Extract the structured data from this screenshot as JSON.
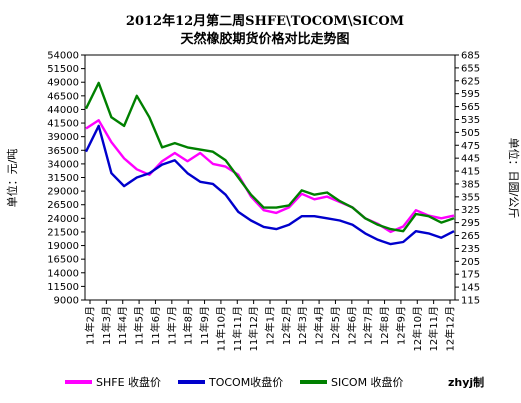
{
  "chart_data": {
    "type": "line",
    "title_line1": "2012年12月第二周SHFE\\TOCOM\\SICOM",
    "title_line2": "天然橡胶期货价格对比走势图",
    "ylabel_left": "单位：元/吨",
    "ylabel_right": "单位：日圆/公斤",
    "credit": "zhyj制",
    "grid": false,
    "legend_position": "bottom",
    "ylim_left": [
      9000,
      54000
    ],
    "ylim_right": [
      115,
      685
    ],
    "yticks_left": [
      9000,
      11500,
      14000,
      16500,
      19000,
      21500,
      24000,
      26500,
      29000,
      31500,
      34000,
      36500,
      39000,
      41500,
      44000,
      46500,
      49000,
      51500,
      54000
    ],
    "yticks_right": [
      115,
      145,
      175,
      205,
      235,
      265,
      295,
      325,
      355,
      385,
      415,
      445,
      475,
      505,
      535,
      565,
      595,
      625,
      655,
      685
    ],
    "x_ticks": [
      "11年2月",
      "11年3月",
      "11年4月",
      "11年5月",
      "11年6月",
      "11年7月",
      "11年8月",
      "11年9月",
      "11年10月",
      "11年11月",
      "11年12月",
      "12年1月",
      "12年2月",
      "12年3月",
      "12年4月",
      "12年5月",
      "12年6月",
      "12年7月",
      "12年8月",
      "12年9月",
      "12年10月",
      "12年11月",
      "12年12月"
    ],
    "series": [
      {
        "name": "SHFE 收盘价",
        "axis": "left",
        "color": "#ff00ff",
        "values": [
          40500,
          42000,
          38000,
          35000,
          33000,
          32000,
          34500,
          36000,
          34500,
          36000,
          34000,
          33500,
          32000,
          28000,
          25500,
          25000,
          26000,
          28500,
          27500,
          28000,
          27000,
          26000,
          24000,
          23000,
          21500,
          22500,
          25500,
          24500,
          24000,
          24500
        ]
      },
      {
        "name": "TOCOM收盘价",
        "axis": "right",
        "color": "#0000cc",
        "values": [
          460,
          520,
          410,
          380,
          400,
          410,
          430,
          440,
          410,
          390,
          385,
          360,
          320,
          300,
          285,
          280,
          290,
          310,
          310,
          305,
          300,
          290,
          270,
          255,
          245,
          250,
          275,
          270,
          260,
          275
        ]
      },
      {
        "name": "SICOM 收盘价",
        "axis": "right",
        "color": "#008000",
        "values": [
          560,
          620,
          540,
          520,
          590,
          540,
          470,
          480,
          470,
          465,
          460,
          440,
          400,
          360,
          330,
          330,
          335,
          370,
          360,
          365,
          345,
          330,
          305,
          290,
          280,
          275,
          315,
          310,
          295,
          305
        ]
      }
    ]
  }
}
